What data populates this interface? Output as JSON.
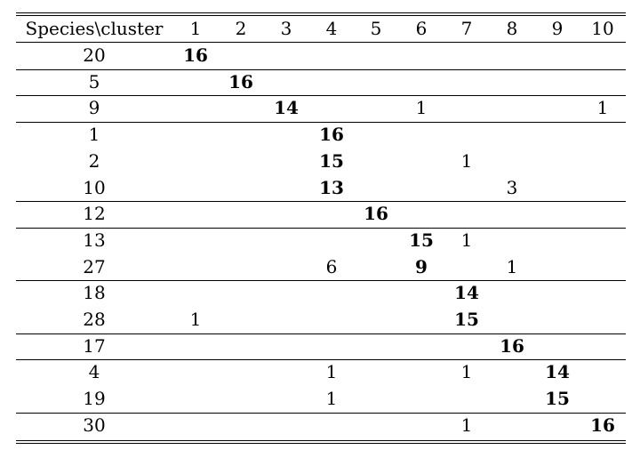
{
  "table": {
    "header": [
      "Species\\cluster",
      "1",
      "2",
      "3",
      "4",
      "5",
      "6",
      "7",
      "8",
      "9",
      "10"
    ],
    "rows": [
      {
        "species": "20",
        "cells": [
          "16",
          "",
          "",
          "",
          "",
          "",
          "",
          "",
          "",
          ""
        ],
        "bold": [
          0
        ]
      },
      {
        "species": "5",
        "cells": [
          "",
          "16",
          "",
          "",
          "",
          "",
          "",
          "",
          "",
          ""
        ],
        "bold": [
          1
        ]
      },
      {
        "species": "9",
        "cells": [
          "",
          "",
          "14",
          "",
          "",
          "1",
          "",
          "",
          "",
          "1"
        ],
        "bold": [
          2
        ]
      },
      {
        "species": "1",
        "cells": [
          "",
          "",
          "",
          "16",
          "",
          "",
          "",
          "",
          "",
          ""
        ],
        "bold": [
          3
        ]
      },
      {
        "species": "2",
        "cells": [
          "",
          "",
          "",
          "15",
          "",
          "",
          "1",
          "",
          "",
          ""
        ],
        "bold": [
          3
        ]
      },
      {
        "species": "10",
        "cells": [
          "",
          "",
          "",
          "13",
          "",
          "",
          "",
          "3",
          "",
          ""
        ],
        "bold": [
          3
        ]
      },
      {
        "species": "12",
        "cells": [
          "",
          "",
          "",
          "",
          "16",
          "",
          "",
          "",
          "",
          ""
        ],
        "bold": [
          4
        ]
      },
      {
        "species": "13",
        "cells": [
          "",
          "",
          "",
          "",
          "",
          "15",
          "1",
          "",
          "",
          ""
        ],
        "bold": [
          5
        ]
      },
      {
        "species": "27",
        "cells": [
          "",
          "",
          "",
          "6",
          "",
          "9",
          "",
          "1",
          "",
          ""
        ],
        "bold": [
          5
        ]
      },
      {
        "species": "18",
        "cells": [
          "",
          "",
          "",
          "",
          "",
          "",
          "14",
          "",
          "",
          ""
        ],
        "bold": [
          6
        ]
      },
      {
        "species": "28",
        "cells": [
          "1",
          "",
          "",
          "",
          "",
          "",
          "15",
          "",
          "",
          ""
        ],
        "bold": [
          6
        ]
      },
      {
        "species": "17",
        "cells": [
          "",
          "",
          "",
          "",
          "",
          "",
          "",
          "16",
          "",
          ""
        ],
        "bold": [
          7
        ]
      },
      {
        "species": "4",
        "cells": [
          "",
          "",
          "",
          "1",
          "",
          "",
          "1",
          "",
          "14",
          ""
        ],
        "bold": [
          8
        ]
      },
      {
        "species": "19",
        "cells": [
          "",
          "",
          "",
          "1",
          "",
          "",
          "",
          "",
          "15",
          ""
        ],
        "bold": [
          8
        ]
      },
      {
        "species": "30",
        "cells": [
          "",
          "",
          "",
          "",
          "",
          "",
          "1",
          "",
          "",
          "16"
        ],
        "bold": [
          9
        ]
      }
    ],
    "group_ends": [
      0,
      1,
      2,
      5,
      6,
      8,
      10,
      11,
      13
    ]
  }
}
